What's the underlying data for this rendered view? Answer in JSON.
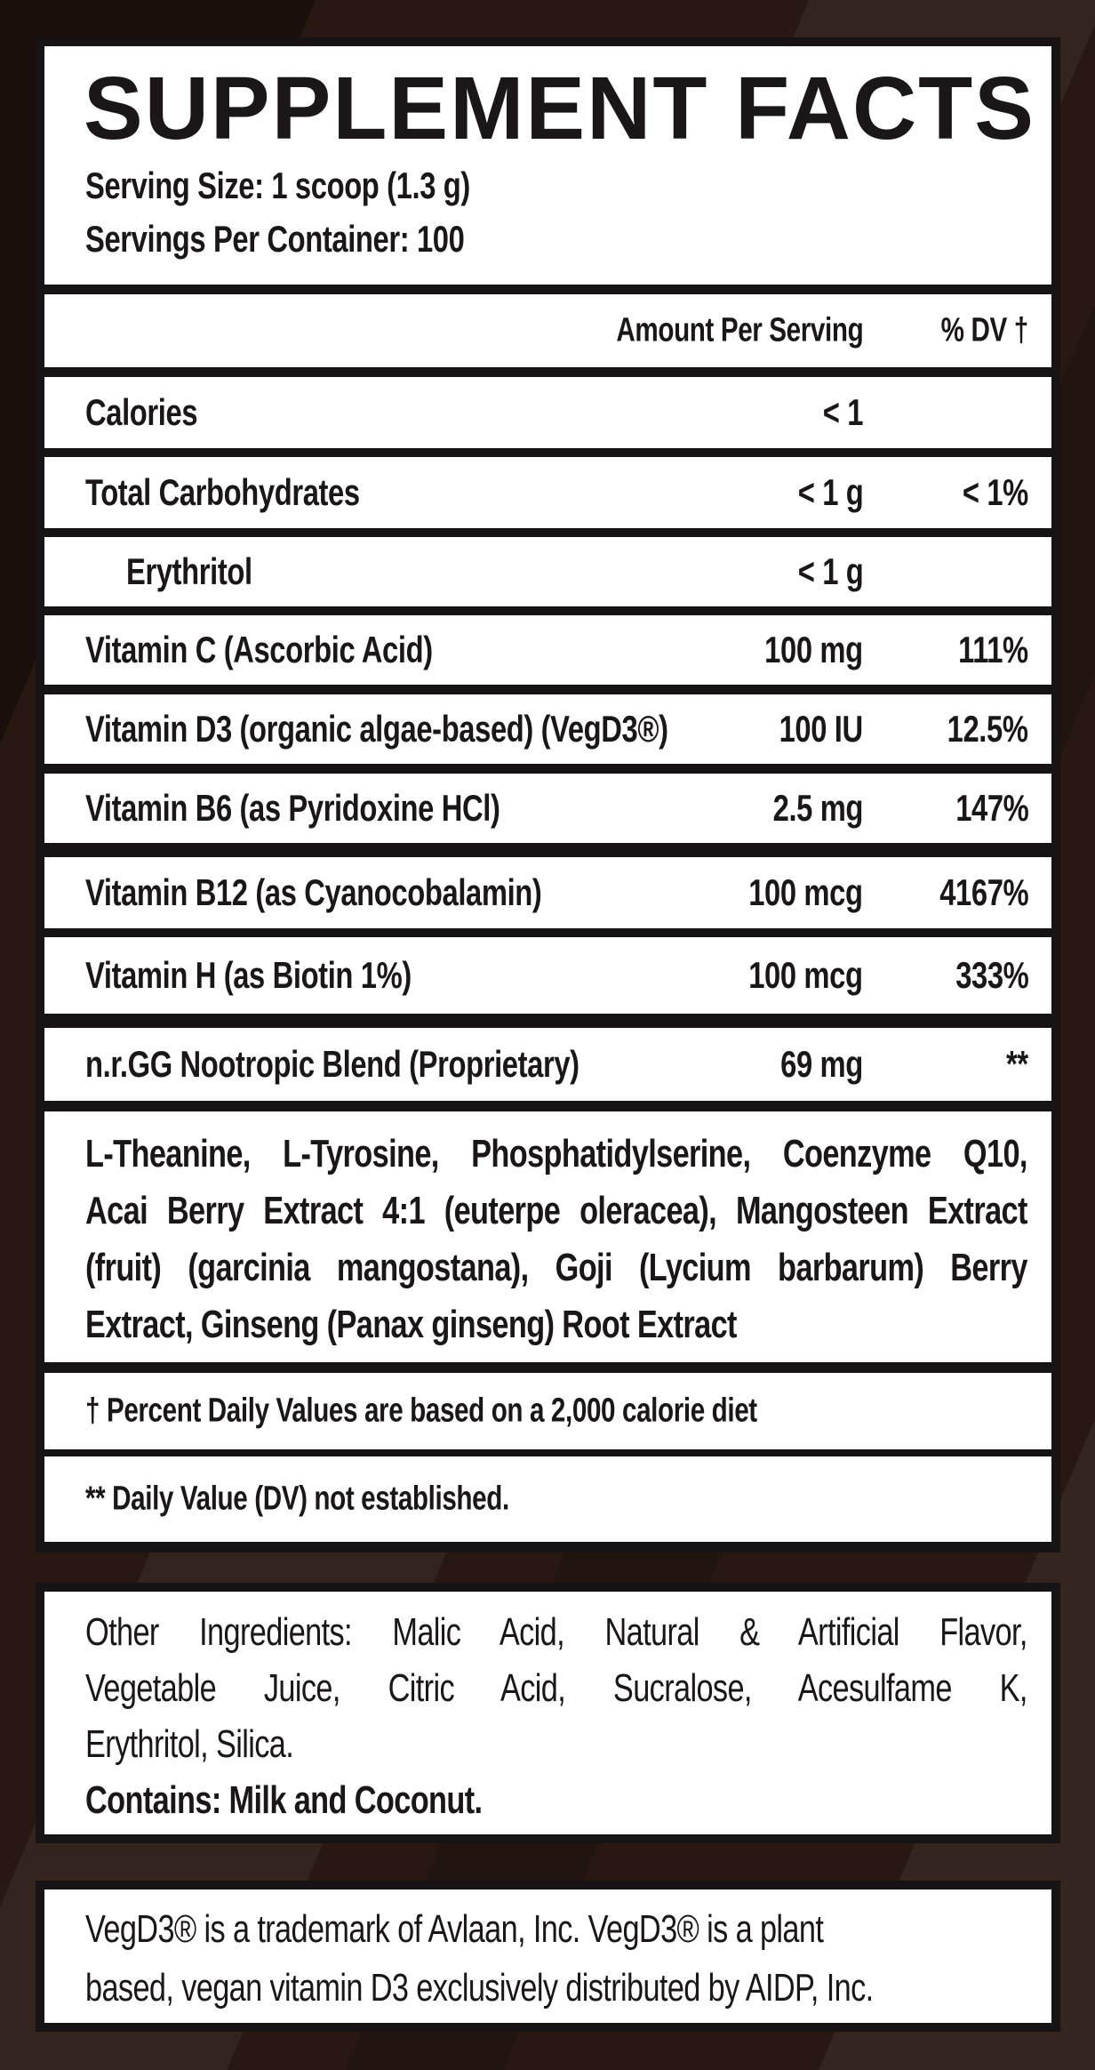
{
  "label": {
    "title": "SUPPLEMENT FACTS",
    "serving_size": "Serving Size: 1 scoop (1.3 g)",
    "servings_per_container": "Servings Per Container: 100",
    "columns": {
      "amount": "Amount Per Serving",
      "dv": "% DV †"
    },
    "rows": [
      {
        "name": "Calories",
        "amount": "< 1",
        "dv": "",
        "indent": false
      },
      {
        "name": "Total Carbohydrates",
        "amount": "< 1 g",
        "dv": "< 1%",
        "indent": false
      },
      {
        "name": "Erythritol",
        "amount": "< 1 g",
        "dv": "",
        "indent": true
      },
      {
        "name": "Vitamin C (Ascorbic Acid)",
        "amount": "100 mg",
        "dv": "111%",
        "indent": false
      },
      {
        "name": "Vitamin D3 (organic algae-based) (VegD3®)",
        "amount": "100 IU",
        "dv": "12.5%",
        "indent": false
      },
      {
        "name": "Vitamin B6 (as Pyridoxine HCl)",
        "amount": "2.5 mg",
        "dv": "147%",
        "indent": false
      },
      {
        "name": "Vitamin B12 (as Cyanocobalamin)",
        "amount": "100 mcg",
        "dv": "4167%",
        "indent": false
      },
      {
        "name": "Vitamin H (as Biotin 1%)",
        "amount": "100 mcg",
        "dv": "333%",
        "indent": false
      },
      {
        "name": "n.r.GG Nootropic Blend (Proprietary)",
        "amount": "69 mg",
        "dv": "**",
        "indent": false
      }
    ],
    "blend_lines": [
      "L-Theanine, L-Tyrosine, Phosphatidylserine, Coenzyme Q10,",
      "Acai Berry Extract 4:1 (euterpe oleracea), Mangosteen Extract",
      "(fruit) (garcinia mangostana), Goji (Lycium barbarum) Berry",
      "Extract, Ginseng (Panax ginseng) Root Extract"
    ],
    "footnote_dv": "† Percent Daily Values are based on a 2,000 calorie diet",
    "footnote_nde": "** Daily Value (DV) not established.",
    "other_ingredients_lines": [
      "Other Ingredients: Malic Acid, Natural & Artificial Flavor,",
      "Vegetable Juice, Citric Acid, Sucralose, Acesulfame K,",
      "Erythritol, Silica."
    ],
    "contains": "Contains: Milk and Coconut.",
    "trademark_lines": [
      "VegD3® is a trademark of Avlaan, Inc. VegD3® is a plant",
      "based, vegan vitamin D3 exclusively distributed by AIDP, Inc."
    ],
    "colors": {
      "background": "#281811",
      "frame": "#171214",
      "panel": "#ffffff",
      "text": "#1b1718"
    }
  }
}
